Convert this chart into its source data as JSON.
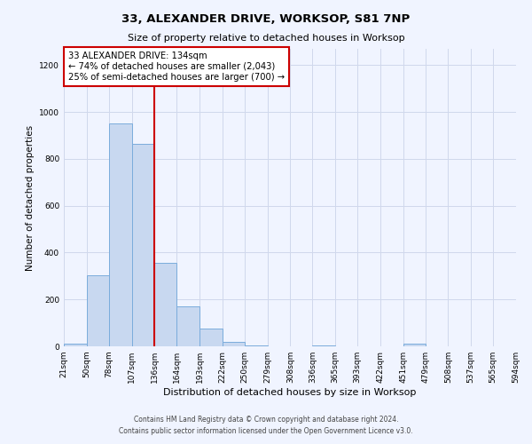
{
  "title": "33, ALEXANDER DRIVE, WORKSOP, S81 7NP",
  "subtitle": "Size of property relative to detached houses in Worksop",
  "xlabel": "Distribution of detached houses by size in Worksop",
  "ylabel": "Number of detached properties",
  "bin_edges": [
    21,
    50,
    78,
    107,
    136,
    164,
    193,
    222,
    250,
    279,
    308,
    336,
    365,
    393,
    422,
    451,
    479,
    508,
    537,
    565,
    594
  ],
  "bin_counts": [
    10,
    305,
    950,
    865,
    355,
    170,
    75,
    20,
    5,
    0,
    0,
    5,
    0,
    0,
    0,
    10,
    0,
    0,
    0,
    0
  ],
  "bar_facecolor": "#c8d8f0",
  "bar_edgecolor": "#7aacdc",
  "vline_x": 136,
  "vline_color": "#cc0000",
  "annotation_title": "33 ALEXANDER DRIVE: 134sqm",
  "annotation_line1": "← 74% of detached houses are smaller (2,043)",
  "annotation_line2": "25% of semi-detached houses are larger (700) →",
  "annotation_box_edgecolor": "#cc0000",
  "tick_labels": [
    "21sqm",
    "50sqm",
    "78sqm",
    "107sqm",
    "136sqm",
    "164sqm",
    "193sqm",
    "222sqm",
    "250sqm",
    "279sqm",
    "308sqm",
    "336sqm",
    "365sqm",
    "393sqm",
    "422sqm",
    "451sqm",
    "479sqm",
    "508sqm",
    "537sqm",
    "565sqm",
    "594sqm"
  ],
  "ylim": [
    0,
    1270
  ],
  "yticks": [
    0,
    200,
    400,
    600,
    800,
    1000,
    1200
  ],
  "grid_color": "#d0d8ec",
  "footnote1": "Contains HM Land Registry data © Crown copyright and database right 2024.",
  "footnote2": "Contains public sector information licensed under the Open Government Licence v3.0.",
  "bg_color": "#f0f4ff"
}
